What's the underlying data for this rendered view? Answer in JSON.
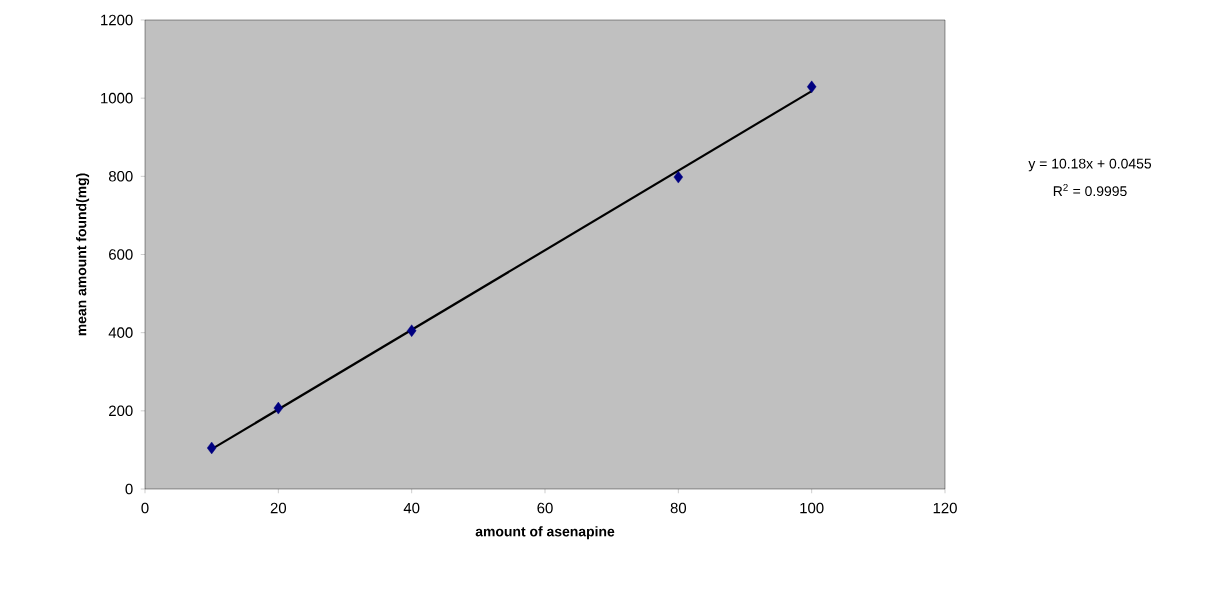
{
  "chart_data": {
    "type": "scatter",
    "xlabel": "amount of asenapine",
    "ylabel": "mean amount found(mg)",
    "xlim": [
      0,
      120
    ],
    "xticks": [
      0,
      20,
      40,
      60,
      80,
      100,
      120
    ],
    "ylim": [
      0,
      1200
    ],
    "yticks": [
      0,
      200,
      400,
      600,
      800,
      1000,
      1200
    ],
    "grid": false,
    "series": [
      {
        "color": "#000080",
        "marker": "diamond",
        "x": [
          10,
          20,
          40,
          80,
          100
        ],
        "values": [
          105,
          207,
          405,
          798,
          1029
        ]
      },
      {
        "type": "line",
        "marker": "none",
        "color": "#000000",
        "line_style": "solid",
        "x": [
          10,
          100
        ],
        "values": [
          102,
          1018
        ]
      }
    ],
    "annotations": [
      "y = 10.18x + 0.0455",
      "R$^{2}$ = 0.9995"
    ]
  }
}
